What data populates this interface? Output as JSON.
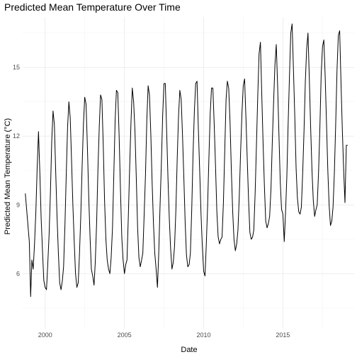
{
  "chart_data": {
    "type": "line",
    "title": "Predicted Mean Temperature Over Time",
    "xlabel": "Date",
    "ylabel": "Predicted Mean Temperature (°C)",
    "xlim": [
      "1998-08-01",
      "2019-07-01"
    ],
    "ylim": [
      3.6,
      17.2
    ],
    "x_ticks": [
      {
        "value": "2000-01-01",
        "label": "2000"
      },
      {
        "value": "2005-01-01",
        "label": "2005"
      },
      {
        "value": "2010-01-01",
        "label": "2010"
      },
      {
        "value": "2015-01-01",
        "label": "2015"
      }
    ],
    "y_ticks": [
      6,
      9,
      12,
      15
    ],
    "grid": true,
    "legend": "none",
    "series": [
      {
        "x": [
          "1998-10-01",
          "1999-01-01",
          "1999-02-01",
          "1999-03-01",
          "1999-04-01",
          "1999-05-01",
          "1999-06-01",
          "1999-07-01",
          "1999-08-01",
          "1999-09-01",
          "1999-10-01",
          "1999-11-01",
          "1999-12-01",
          "2000-01-01",
          "2000-02-01",
          "2000-03-01",
          "2000-04-01",
          "2000-05-01",
          "2000-06-01",
          "2000-07-01",
          "2000-08-01",
          "2000-09-01",
          "2000-10-01",
          "2000-11-01",
          "2000-12-01",
          "2001-01-01",
          "2001-02-01",
          "2001-03-01",
          "2001-04-01",
          "2001-05-01",
          "2001-06-01",
          "2001-07-01",
          "2001-08-01",
          "2001-09-01",
          "2001-10-01",
          "2001-11-01",
          "2001-12-01",
          "2002-01-01",
          "2002-02-01",
          "2002-03-01",
          "2002-04-01",
          "2002-05-01",
          "2002-06-01",
          "2002-07-01",
          "2002-08-01",
          "2002-09-01",
          "2002-10-01",
          "2002-11-01",
          "2002-12-01",
          "2003-01-01",
          "2003-02-01",
          "2003-03-01",
          "2003-04-01",
          "2003-05-01",
          "2003-06-01",
          "2003-07-01",
          "2003-08-01",
          "2003-09-01",
          "2003-10-01",
          "2003-11-01",
          "2003-12-01",
          "2004-01-01",
          "2004-02-01",
          "2004-03-01",
          "2004-04-01",
          "2004-05-01",
          "2004-06-01",
          "2004-07-01",
          "2004-08-01",
          "2004-09-01",
          "2004-10-01",
          "2004-11-01",
          "2004-12-01",
          "2005-01-01",
          "2005-02-01",
          "2005-03-01",
          "2005-04-01",
          "2005-05-01",
          "2005-06-01",
          "2005-07-01",
          "2005-08-01",
          "2005-09-01",
          "2005-10-01",
          "2005-11-01",
          "2005-12-01",
          "2006-01-01",
          "2006-02-01",
          "2006-03-01",
          "2006-04-01",
          "2006-05-01",
          "2006-06-01",
          "2006-07-01",
          "2006-08-01",
          "2006-09-01",
          "2006-10-01",
          "2006-11-01",
          "2006-12-01",
          "2007-01-01",
          "2007-02-01",
          "2007-03-01",
          "2007-04-01",
          "2007-05-01",
          "2007-06-01",
          "2007-07-01",
          "2007-08-01",
          "2007-09-01",
          "2007-10-01",
          "2007-11-01",
          "2007-12-01",
          "2008-01-01",
          "2008-02-01",
          "2008-03-01",
          "2008-04-01",
          "2008-05-01",
          "2008-06-01",
          "2008-07-01",
          "2008-08-01",
          "2008-09-01",
          "2008-10-01",
          "2008-11-01",
          "2008-12-01",
          "2009-01-01",
          "2009-02-01",
          "2009-03-01",
          "2009-04-01",
          "2009-05-01",
          "2009-06-01",
          "2009-07-01",
          "2009-08-01",
          "2009-09-01",
          "2009-10-01",
          "2009-11-01",
          "2009-12-01",
          "2010-01-01",
          "2010-02-01",
          "2010-03-01",
          "2010-04-01",
          "2010-05-01",
          "2010-06-01",
          "2010-07-01",
          "2010-08-01",
          "2010-09-01",
          "2010-10-01",
          "2010-11-01",
          "2010-12-01",
          "2011-01-01",
          "2011-02-01",
          "2011-03-01",
          "2011-04-01",
          "2011-05-01",
          "2011-06-01",
          "2011-07-01",
          "2011-08-01",
          "2011-09-01",
          "2011-10-01",
          "2011-11-01",
          "2011-12-01",
          "2012-01-01",
          "2012-02-01",
          "2012-03-01",
          "2012-04-01",
          "2012-05-01",
          "2012-06-01",
          "2012-07-01",
          "2012-08-01",
          "2012-09-01",
          "2012-10-01",
          "2012-11-01",
          "2012-12-01",
          "2013-01-01",
          "2013-02-01",
          "2013-03-01",
          "2013-04-01",
          "2013-05-01",
          "2013-06-01",
          "2013-07-01",
          "2013-08-01",
          "2013-09-01",
          "2013-10-01",
          "2013-11-01",
          "2013-12-01",
          "2014-01-01",
          "2014-02-01",
          "2014-03-01",
          "2014-04-01",
          "2014-05-01",
          "2014-06-01",
          "2014-07-01",
          "2014-08-01",
          "2014-09-01",
          "2014-10-01",
          "2014-11-01",
          "2014-12-01",
          "2015-01-01",
          "2015-02-01",
          "2015-03-01",
          "2015-04-01",
          "2015-05-01",
          "2015-06-01",
          "2015-07-01",
          "2015-08-01",
          "2015-09-01",
          "2015-10-01",
          "2015-11-01",
          "2015-12-01",
          "2016-01-01",
          "2016-02-01",
          "2016-03-01",
          "2016-04-01",
          "2016-05-01",
          "2016-06-01",
          "2016-07-01",
          "2016-08-01",
          "2016-09-01",
          "2016-10-01",
          "2016-11-01",
          "2016-12-01",
          "2017-01-01",
          "2017-02-01",
          "2017-03-01",
          "2017-04-01",
          "2017-05-01",
          "2017-06-01",
          "2017-07-01",
          "2017-08-01",
          "2017-09-01",
          "2017-10-01",
          "2017-11-01",
          "2017-12-01",
          "2018-01-01",
          "2018-02-01",
          "2018-03-01",
          "2018-04-01",
          "2018-05-01",
          "2018-06-01",
          "2018-07-01",
          "2018-08-01",
          "2018-09-01",
          "2018-10-01",
          "2018-11-01",
          "2018-12-01",
          "2019-01-01",
          "2019-02-01"
        ],
        "y": [
          9.5,
          7.4,
          5.0,
          6.6,
          6.2,
          7.3,
          8.7,
          10.6,
          12.2,
          10.4,
          8.4,
          7.0,
          5.7,
          5.4,
          5.3,
          6.4,
          7.7,
          9.5,
          11.8,
          13.1,
          12.5,
          10.4,
          8.5,
          6.9,
          5.6,
          5.3,
          5.7,
          6.3,
          8.1,
          10.3,
          12.4,
          13.5,
          12.8,
          10.9,
          9.0,
          7.4,
          6.0,
          5.4,
          5.6,
          6.8,
          8.5,
          10.6,
          12.5,
          13.7,
          13.4,
          11.5,
          9.4,
          7.6,
          6.2,
          5.9,
          5.5,
          6.5,
          8.2,
          10.5,
          12.4,
          13.8,
          13.6,
          11.6,
          9.2,
          7.5,
          6.6,
          6.2,
          6.0,
          6.7,
          8.0,
          10.3,
          12.7,
          14.0,
          13.9,
          12.0,
          9.7,
          7.6,
          6.6,
          6.0,
          6.4,
          6.6,
          8.5,
          10.6,
          12.6,
          14.1,
          13.5,
          12.2,
          10.2,
          8.0,
          6.7,
          6.3,
          6.6,
          6.9,
          8.6,
          10.3,
          12.7,
          14.2,
          13.8,
          12.1,
          10.0,
          8.2,
          6.9,
          6.2,
          5.4,
          6.8,
          8.9,
          10.7,
          12.9,
          14.3,
          14.3,
          12.2,
          10.2,
          8.4,
          7.1,
          6.2,
          6.5,
          7.2,
          8.8,
          11.0,
          12.9,
          14.0,
          13.6,
          12.0,
          10.2,
          8.2,
          6.8,
          6.3,
          6.4,
          6.9,
          8.8,
          11.2,
          13.1,
          14.3,
          14.4,
          12.3,
          10.5,
          8.6,
          7.2,
          6.1,
          5.9,
          7.2,
          8.9,
          11.0,
          13.0,
          14.1,
          14.1,
          12.5,
          10.7,
          8.7,
          7.6,
          7.3,
          7.5,
          7.6,
          9.1,
          11.3,
          13.6,
          14.4,
          14.1,
          12.6,
          10.5,
          8.7,
          7.5,
          7.0,
          7.3,
          7.9,
          9.4,
          11.3,
          13.0,
          14.2,
          14.5,
          12.8,
          11.0,
          9.2,
          7.8,
          7.5,
          7.6,
          7.9,
          9.5,
          11.6,
          13.8,
          15.6,
          16.1,
          13.8,
          11.7,
          9.8,
          8.3,
          8.0,
          8.2,
          8.5,
          9.7,
          11.7,
          13.5,
          15.1,
          16.0,
          14.2,
          12.1,
          10.0,
          8.8,
          8.6,
          7.4,
          8.6,
          10.2,
          12.5,
          14.6,
          16.5,
          16.9,
          14.9,
          12.9,
          10.6,
          9.3,
          8.7,
          8.6,
          8.9,
          10.4,
          12.2,
          14.4,
          15.8,
          16.5,
          14.5,
          12.4,
          10.5,
          9.2,
          8.5,
          8.8,
          9.0,
          10.4,
          12.3,
          14.7,
          15.9,
          16.2,
          14.6,
          12.6,
          10.5,
          9.0,
          8.1,
          8.3,
          8.9,
          10.4,
          12.5,
          14.9,
          16.4,
          16.6,
          14.3,
          12.3,
          10.5,
          9.1,
          11.6,
          11.6
        ]
      }
    ]
  }
}
